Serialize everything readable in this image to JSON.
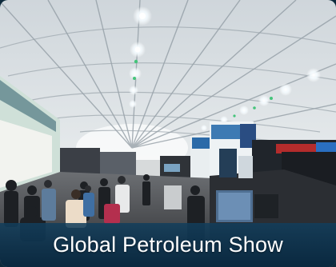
{
  "caption": {
    "text": "Global Petroleum Show"
  },
  "colors": {
    "caption_bar": "#0f3a58",
    "caption_text": "#ffffff",
    "tent_roof": "#d9dee2"
  }
}
